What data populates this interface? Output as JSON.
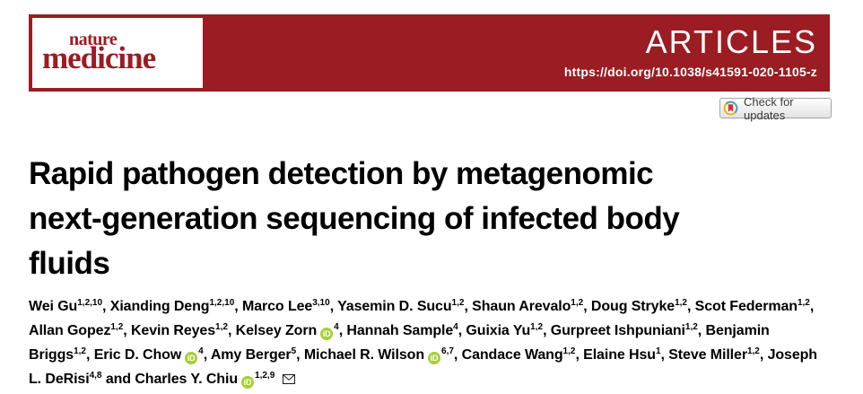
{
  "journal": {
    "logo_line1": "nature",
    "logo_line2": "medicine",
    "section": "ARTICLES",
    "doi": "https://doi.org/10.1038/s41591-020-1105-z",
    "banner_color": "#9b1c23",
    "logo_color": "#9b1c23"
  },
  "crossmark": {
    "label": "Check for updates",
    "icon_colors": {
      "yellow": "#f0b429",
      "blue": "#3aa5dc",
      "red": "#cf3832"
    }
  },
  "title": {
    "full": "Rapid pathogen detection by metagenomic next-generation sequencing of infected body fluids",
    "lines": [
      "Rapid pathogen detection by metagenomic",
      "next-generation sequencing of infected body",
      "fluids"
    ]
  },
  "authors": {
    "separator": ", ",
    "and_word": "and",
    "list": [
      {
        "name": "Wei Gu",
        "sup": "1,2,10"
      },
      {
        "name": "Xianding Deng",
        "sup": "1,2,10"
      },
      {
        "name": "Marco Lee",
        "sup": "3,10"
      },
      {
        "name": "Yasemin D. Sucu",
        "sup": "1,2"
      },
      {
        "name": "Shaun Arevalo",
        "sup": "1,2"
      },
      {
        "name": "Doug Stryke",
        "sup": "1,2"
      },
      {
        "name": "Scot Federman",
        "sup": "1,2"
      },
      {
        "name": "Allan Gopez",
        "sup": "1,2"
      },
      {
        "name": "Kevin Reyes",
        "sup": "1,2"
      },
      {
        "name": "Kelsey Zorn",
        "orcid": true,
        "sup": "4"
      },
      {
        "name": "Hannah Sample",
        "sup": "4"
      },
      {
        "name": "Guixia Yu",
        "sup": "1,2"
      },
      {
        "name": "Gurpreet Ishpuniani",
        "sup": "1,2"
      },
      {
        "name": "Benjamin Briggs",
        "sup": "1,2"
      },
      {
        "name": "Eric D. Chow",
        "orcid": true,
        "sup": "4"
      },
      {
        "name": "Amy Berger",
        "sup": "5"
      },
      {
        "name": "Michael R. Wilson",
        "orcid": true,
        "sup": "6,7"
      },
      {
        "name": "Candace Wang",
        "sup": "1,2"
      },
      {
        "name": "Elaine Hsu",
        "sup": "1"
      },
      {
        "name": "Steve Miller",
        "sup": "1,2"
      },
      {
        "name": "Joseph L. DeRisi",
        "sup": "4,8"
      },
      {
        "name": "Charles Y. Chiu",
        "orcid": true,
        "sup": "1,2,9",
        "envelope": true
      }
    ]
  },
  "icons": {
    "orcid": {
      "name": "orcid-icon",
      "text": "iD",
      "color": "#a6ce39"
    },
    "envelope": {
      "name": "envelope-icon"
    },
    "crossmark": {
      "name": "crossmark-icon"
    }
  }
}
